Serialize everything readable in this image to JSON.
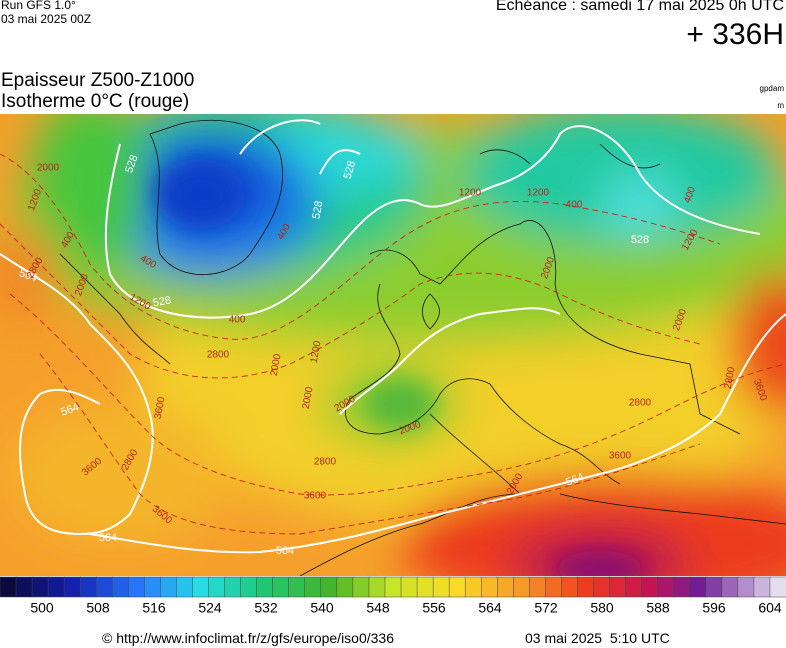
{
  "header": {
    "run": "Run GFS 1.0°",
    "date": "03 mai 2025 00Z",
    "echeance": "Echéance : samedi 17 mai 2025 0h UTC",
    "lead": "+ 336H"
  },
  "titles": {
    "line1": "Epaisseur Z500-Z1000",
    "line2": "Isotherme 0°C (rouge)",
    "unit1": "gpdam",
    "unit2": "m"
  },
  "map": {
    "thickness_labels": [
      "528",
      "528",
      "528",
      "528",
      "528",
      "564",
      "564",
      "564",
      "564",
      "564"
    ],
    "isotherm_labels": [
      "2000",
      "1200",
      "400",
      "2800",
      "2000",
      "400",
      "1200",
      "400",
      "400",
      "1200",
      "1200",
      "400",
      "400",
      "1200",
      "2000",
      "2000",
      "1200",
      "2800",
      "2000",
      "3600",
      "2000",
      "2000",
      "2000",
      "2800",
      "3600",
      "2800",
      "3600",
      "3600",
      "2800",
      "2800",
      "3600",
      "3600",
      "2000"
    ]
  },
  "legend": {
    "labels": [
      500,
      508,
      516,
      524,
      532,
      540,
      548,
      556,
      564,
      572,
      580,
      588,
      596,
      604
    ]
  },
  "footer": {
    "url": "© http://www.infoclimat.fr/z/gfs/europe/iso0/336",
    "timestamp": "03 mai 2025  5:10 UTC"
  }
}
